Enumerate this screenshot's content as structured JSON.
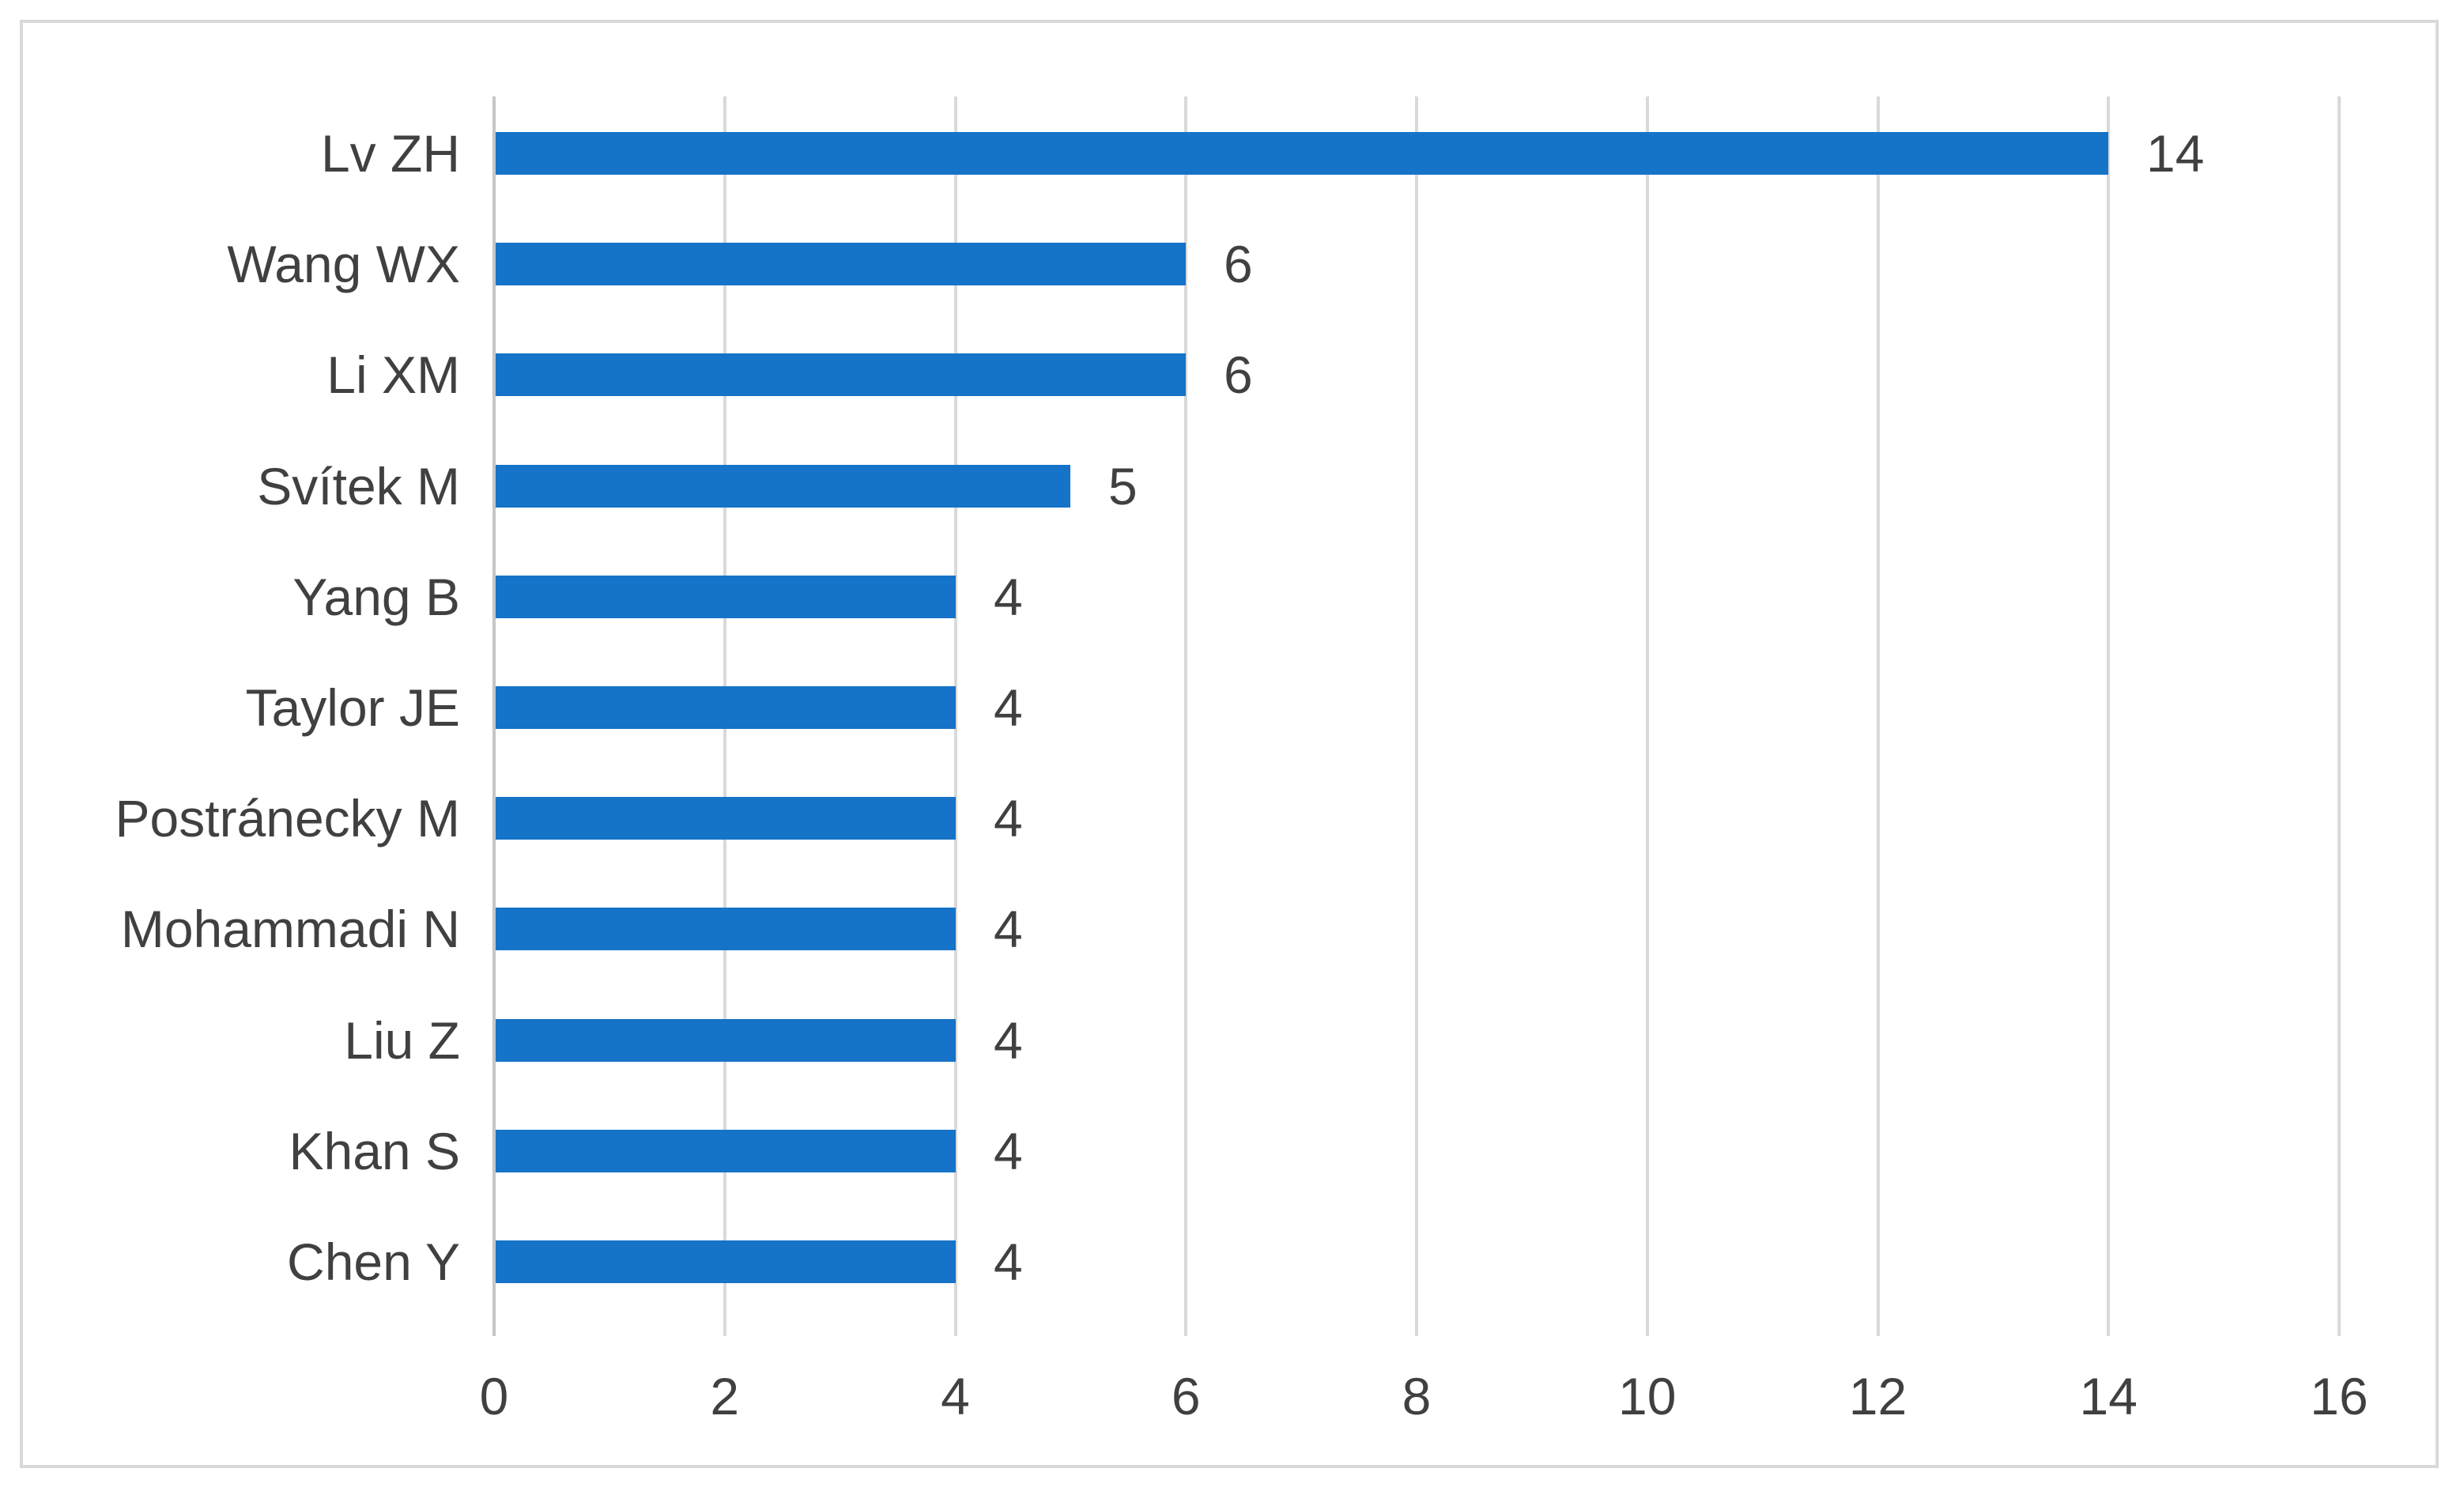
{
  "chart_data": {
    "type": "bar",
    "orientation": "horizontal",
    "title": "",
    "xlabel": "",
    "ylabel": "",
    "categories": [
      "Lv ZH",
      "Wang WX",
      "Li XM",
      "Svítek M",
      "Yang B",
      "Taylor JE",
      "Postránecky M",
      "Mohammadi N",
      "Liu Z",
      "Khan S",
      "Chen Y"
    ],
    "values": [
      14,
      6,
      6,
      5,
      4,
      4,
      4,
      4,
      4,
      4,
      4
    ],
    "data_labels": [
      "14",
      "6",
      "6",
      "5",
      "4",
      "4",
      "4",
      "4",
      "4",
      "4",
      "4"
    ],
    "x_ticks": [
      0,
      2,
      4,
      6,
      8,
      10,
      12,
      14,
      16
    ],
    "x_tick_labels": [
      "0",
      "2",
      "4",
      "6",
      "8",
      "10",
      "12",
      "14",
      "16"
    ],
    "xlim": [
      0,
      16
    ],
    "grid": "vertical-major",
    "legend": "none",
    "colors": {
      "bar": "#1573c8",
      "gridline": "#d9d9d9",
      "category_axis_line": "#c6c6c6",
      "text": "#404040",
      "frame_border": "#d9d9d9",
      "background": "#ffffff"
    }
  }
}
